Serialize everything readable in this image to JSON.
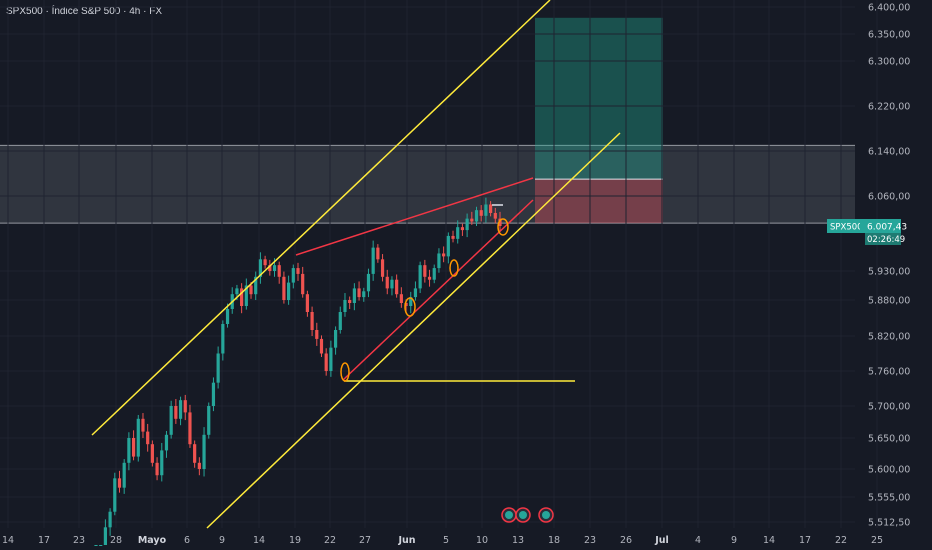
{
  "header": {
    "title": "SPX500 · Índice S&P 500 · 4h · FX"
  },
  "colors": {
    "background": "#161a25",
    "candle_up": "#26a69a",
    "candle_down": "#ef5350",
    "channel": "#ffeb3b",
    "wedge": "#f23645",
    "zone": "#5d606b",
    "target": "#22ab94",
    "stop": "#f7525f",
    "price_label": "#26a69a"
  },
  "price_label": {
    "symbol": "SPX500",
    "price": "6.007,43",
    "countdown": "02:26:49"
  },
  "chart_data": {
    "type": "candlestick",
    "title": "SPX500 · Índice S&P 500 · 4h · FX",
    "ylim": [
      5500,
      6420
    ],
    "y_ticks": [
      {
        "v": 6400,
        "label": "6.400,00"
      },
      {
        "v": 6350,
        "label": "6.350,00"
      },
      {
        "v": 6300,
        "label": "6.300,00"
      },
      {
        "v": 6220,
        "label": "6.220,00"
      },
      {
        "v": 6140,
        "label": "6.140,00"
      },
      {
        "v": 6060,
        "label": "6.060,00"
      },
      {
        "v": 5930,
        "label": "5.930,00"
      },
      {
        "v": 5880,
        "label": "5.880,00"
      },
      {
        "v": 5820,
        "label": "5.820,00"
      },
      {
        "v": 5760,
        "label": "5.760,00"
      },
      {
        "v": 5700,
        "label": "5.700,00"
      },
      {
        "v": 5650,
        "label": "5.650,00"
      },
      {
        "v": 5600,
        "label": "5.600,00"
      },
      {
        "v": 5555,
        "label": "5.555,00"
      },
      {
        "v": 5512.5,
        "label": "5.512,50"
      }
    ],
    "x_ticks": [
      {
        "label": "14",
        "bold": false
      },
      {
        "label": "17",
        "bold": false
      },
      {
        "label": "23",
        "bold": false
      },
      {
        "label": "28",
        "bold": false
      },
      {
        "label": "Mayo",
        "bold": true
      },
      {
        "label": "6",
        "bold": false
      },
      {
        "label": "9",
        "bold": false
      },
      {
        "label": "14",
        "bold": false
      },
      {
        "label": "19",
        "bold": false
      },
      {
        "label": "22",
        "bold": false
      },
      {
        "label": "27",
        "bold": false
      },
      {
        "label": "Jun",
        "bold": true
      },
      {
        "label": "5",
        "bold": false
      },
      {
        "label": "10",
        "bold": false
      },
      {
        "label": "13",
        "bold": false
      },
      {
        "label": "18",
        "bold": false
      },
      {
        "label": "23",
        "bold": false
      },
      {
        "label": "26",
        "bold": false
      },
      {
        "label": "Jul",
        "bold": true
      },
      {
        "label": "4",
        "bold": false
      },
      {
        "label": "9",
        "bold": false
      },
      {
        "label": "14",
        "bold": false
      },
      {
        "label": "17",
        "bold": false
      },
      {
        "label": "22",
        "bold": false
      },
      {
        "label": "25",
        "bold": false
      }
    ],
    "closes": [
      5440,
      5470,
      5505,
      5530,
      5585,
      5570,
      5610,
      5650,
      5620,
      5680,
      5660,
      5640,
      5610,
      5590,
      5630,
      5655,
      5700,
      5680,
      5710,
      5690,
      5640,
      5610,
      5600,
      5655,
      5700,
      5740,
      5790,
      5840,
      5865,
      5890,
      5900,
      5870,
      5905,
      5890,
      5920,
      5950,
      5940,
      5930,
      5940,
      5920,
      5880,
      5910,
      5935,
      5925,
      5890,
      5860,
      5830,
      5815,
      5790,
      5760,
      5800,
      5830,
      5860,
      5880,
      5875,
      5900,
      5885,
      5895,
      5925,
      5970,
      5950,
      5920,
      5900,
      5915,
      5890,
      5875,
      5870,
      5885,
      5900,
      5940,
      5920,
      5915,
      5935,
      5960,
      5955,
      5990,
      5985,
      6005,
      6000,
      6020,
      6015,
      6035,
      6025,
      6045,
      6030,
      6020,
      6007
    ],
    "channel_lines": [
      {
        "from": [
          "15 abr",
          5660
        ],
        "to": [
          "11 jun",
          6440
        ]
      },
      {
        "from": [
          "8 may",
          5500
        ],
        "to": [
          "25 jun",
          6125
        ]
      }
    ],
    "wedge_lines": [
      {
        "from": [
          "20 may",
          5950
        ],
        "to": [
          "15 jun",
          6085
        ]
      },
      {
        "from": [
          "24 may",
          5760
        ],
        "to": [
          "15 jun",
          6058
        ]
      }
    ],
    "support_line": {
      "price": 5760
    },
    "resistance_zone": [
      6012,
      6150
    ],
    "position": {
      "entry": 6012,
      "stop": 6090,
      "target": 6380
    }
  }
}
